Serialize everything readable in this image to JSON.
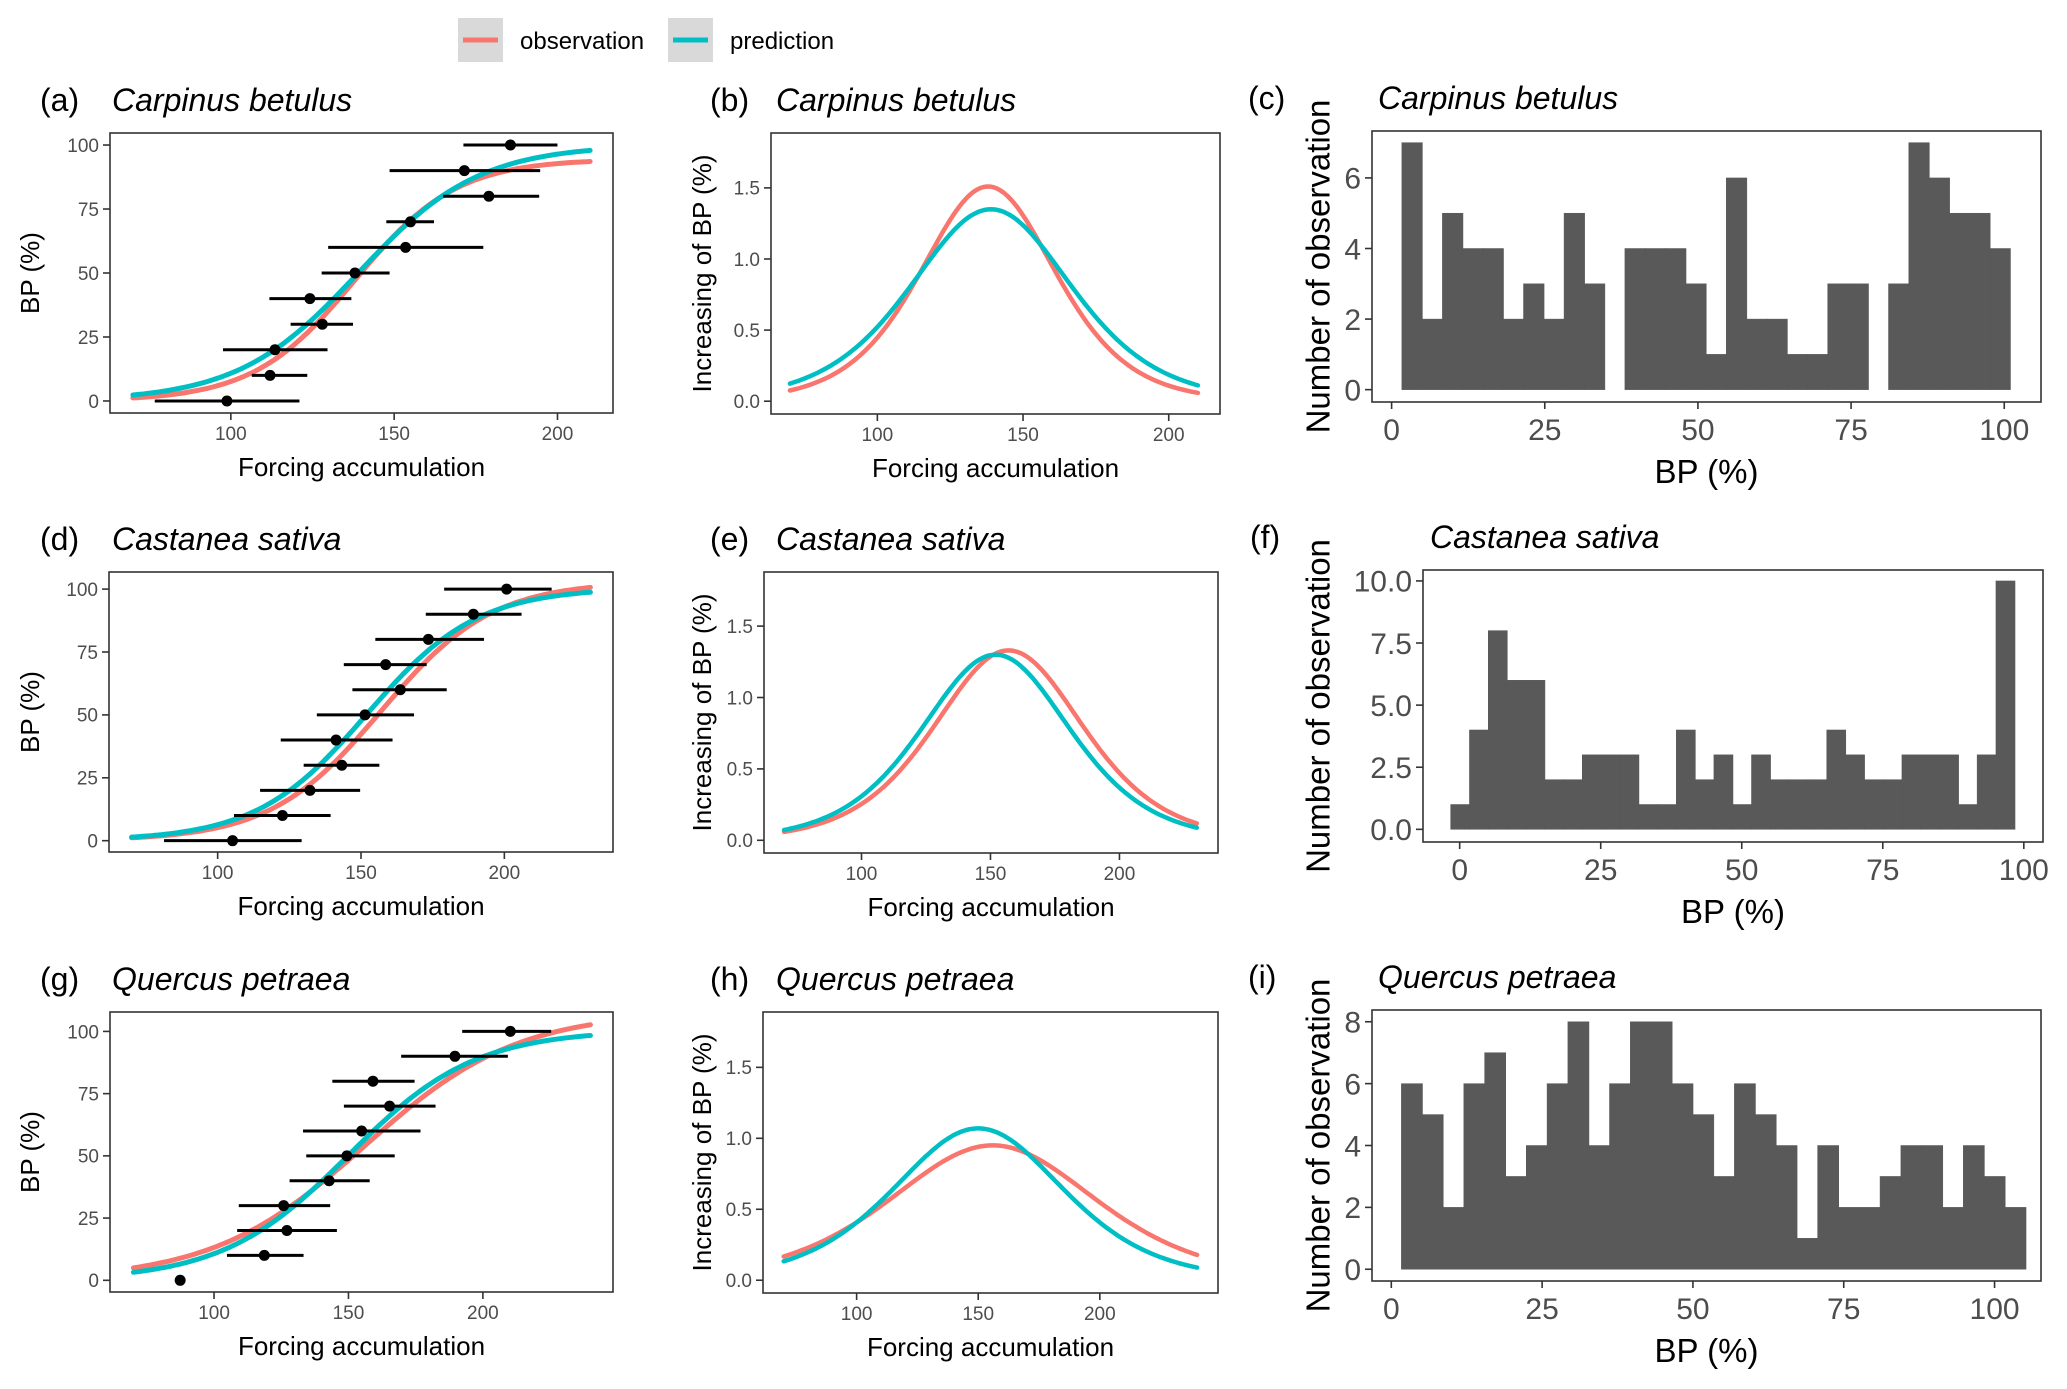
{
  "legend": {
    "items": [
      {
        "label": "observation",
        "color": "#F8766D"
      },
      {
        "label": "prediction",
        "color": "#00BFC4"
      }
    ],
    "key_background": "#d9d9d9",
    "placement": "top-center"
  },
  "colors": {
    "observation": "#F8766D",
    "prediction": "#00BFC4",
    "histogram_fill": "#595959",
    "points": "#000000"
  },
  "chart_data": [
    {
      "id": "a",
      "tag": "(a)",
      "title": "Carpinus betulus",
      "type": "scatter",
      "xlabel": "Forcing accumulation",
      "ylabel": "BP (%)",
      "xlim": [
        63,
        217
      ],
      "ylim": [
        -4.7,
        104.7
      ],
      "xticks": [
        100,
        150,
        200
      ],
      "yticks": [
        0,
        25,
        50,
        75,
        100
      ],
      "ytick_labels": [
        "0",
        "25",
        "50",
        "75",
        "100"
      ],
      "points": [
        {
          "y": 100,
          "x": 185.6,
          "xmin": 171.2,
          "xmax": 200.0
        },
        {
          "y": 90,
          "x": 171.5,
          "xmin": 148.6,
          "xmax": 194.7
        },
        {
          "y": 80,
          "x": 179.0,
          "xmin": 165.0,
          "xmax": 194.4
        },
        {
          "y": 70,
          "x": 155.0,
          "xmin": 147.6,
          "xmax": 162.2
        },
        {
          "y": 60,
          "x": 153.5,
          "xmin": 129.8,
          "xmax": 177.3
        },
        {
          "y": 50,
          "x": 138.0,
          "xmin": 127.8,
          "xmax": 148.6
        },
        {
          "y": 40,
          "x": 124.2,
          "xmin": 111.8,
          "xmax": 136.9
        },
        {
          "y": 30,
          "x": 128.0,
          "xmin": 118.3,
          "xmax": 137.4
        },
        {
          "y": 20,
          "x": 113.5,
          "xmin": 97.6,
          "xmax": 129.6
        },
        {
          "y": 10,
          "x": 112.0,
          "xmin": 106.4,
          "xmax": 123.4
        },
        {
          "y": 0,
          "x": 98.8,
          "xmin": 76.7,
          "xmax": 121.0
        }
      ],
      "series": [
        {
          "name": "observation",
          "kind": "logistic",
          "asymptote": 94.5,
          "midpoint": 138,
          "scale": 15.6,
          "x_range": [
            70,
            210
          ]
        },
        {
          "name": "prediction",
          "kind": "logistic",
          "asymptote": 100,
          "midpoint": 139,
          "scale": 18.5,
          "x_range": [
            70,
            210
          ]
        }
      ]
    },
    {
      "id": "b",
      "tag": "(b)",
      "title": "Carpinus betulus",
      "type": "line",
      "xlabel": "Forcing accumulation",
      "ylabel": "Increasing of BP (%)",
      "xlim": [
        63.5,
        217.6
      ],
      "ylim": [
        -0.09,
        1.886
      ],
      "xticks": [
        100,
        150,
        200
      ],
      "yticks": [
        0,
        0.5,
        1.0,
        1.5
      ],
      "ytick_labels": [
        "0.0",
        "0.5",
        "1.0",
        "1.5"
      ],
      "series": [
        {
          "name": "observation",
          "kind": "logistic_derivative",
          "peak": 1.51,
          "midpoint": 138,
          "scale": 15.6,
          "x_range": [
            70,
            210
          ]
        },
        {
          "name": "prediction",
          "kind": "logistic_derivative",
          "peak": 1.35,
          "midpoint": 139,
          "scale": 18.5,
          "x_range": [
            70,
            210
          ]
        }
      ]
    },
    {
      "id": "c",
      "tag": "(c)",
      "title": "Carpinus betulus",
      "type": "bar",
      "xlabel": "BP (%)",
      "ylabel": "Number of observation",
      "xlim": [
        -3.2,
        106
      ],
      "ylim": [
        -0.35,
        7.33
      ],
      "xticks": [
        0,
        25,
        50,
        75,
        100
      ],
      "yticks": [
        0,
        2,
        4,
        6
      ],
      "ytick_labels": [
        "0",
        "2",
        "4",
        "6"
      ],
      "bin_start": 1.67,
      "bin_width": 3.31,
      "counts": [
        7,
        2,
        5,
        4,
        4,
        2,
        3,
        2,
        5,
        3,
        0,
        4,
        4,
        4,
        3,
        1,
        6,
        2,
        2,
        1,
        1,
        3,
        3,
        0,
        3,
        7,
        6,
        5,
        5,
        4
      ]
    },
    {
      "id": "d",
      "tag": "(d)",
      "title": "Castanea sativa",
      "type": "scatter",
      "xlabel": "Forcing accumulation",
      "ylabel": "BP (%)",
      "xlim": [
        62.1,
        237.9
      ],
      "ylim": [
        -4.5,
        106.8
      ],
      "xticks": [
        100,
        150,
        200
      ],
      "yticks": [
        0,
        25,
        50,
        75,
        100
      ],
      "ytick_labels": [
        "0",
        "25",
        "50",
        "75",
        "100"
      ],
      "points": [
        {
          "y": 100,
          "x": 200.8,
          "xmin": 179.0,
          "xmax": 216.5
        },
        {
          "y": 90,
          "x": 189.2,
          "xmin": 172.6,
          "xmax": 206.0
        },
        {
          "y": 80,
          "x": 173.5,
          "xmin": 155.0,
          "xmax": 192.9
        },
        {
          "y": 70,
          "x": 158.6,
          "xmin": 144.0,
          "xmax": 172.9
        },
        {
          "y": 60,
          "x": 163.7,
          "xmin": 147.0,
          "xmax": 179.9
        },
        {
          "y": 50,
          "x": 151.4,
          "xmin": 134.6,
          "xmax": 168.5
        },
        {
          "y": 40,
          "x": 141.3,
          "xmin": 122.0,
          "xmax": 161.0
        },
        {
          "y": 30,
          "x": 143.3,
          "xmin": 130.0,
          "xmax": 156.4
        },
        {
          "y": 20,
          "x": 132.2,
          "xmin": 114.8,
          "xmax": 149.7
        },
        {
          "y": 10,
          "x": 122.6,
          "xmin": 105.7,
          "xmax": 139.4
        },
        {
          "y": 0,
          "x": 105.2,
          "xmin": 81.3,
          "xmax": 129.3
        }
      ],
      "series": [
        {
          "name": "observation",
          "kind": "logistic",
          "asymptote": 103,
          "midpoint": 157,
          "scale": 19.4,
          "x_range": [
            70,
            230
          ]
        },
        {
          "name": "prediction",
          "kind": "logistic",
          "asymptote": 100.5,
          "midpoint": 152,
          "scale": 19.3,
          "x_range": [
            70,
            230
          ]
        }
      ]
    },
    {
      "id": "e",
      "tag": "(e)",
      "title": "Castanea sativa",
      "type": "line",
      "xlabel": "Forcing accumulation",
      "ylabel": "Increasing of BP (%)",
      "xlim": [
        62.2,
        238.2
      ],
      "ylim": [
        -0.089,
        1.879
      ],
      "xticks": [
        100,
        150,
        200
      ],
      "yticks": [
        0,
        0.5,
        1.0,
        1.5
      ],
      "ytick_labels": [
        "0.0",
        "0.5",
        "1.0",
        "1.5"
      ],
      "series": [
        {
          "name": "observation",
          "kind": "logistic_derivative",
          "peak": 1.33,
          "midpoint": 157,
          "scale": 19.4,
          "x_range": [
            70,
            230
          ]
        },
        {
          "name": "prediction",
          "kind": "logistic_derivative",
          "peak": 1.3,
          "midpoint": 152,
          "scale": 19.3,
          "x_range": [
            70,
            230
          ]
        }
      ]
    },
    {
      "id": "f",
      "tag": "(f)",
      "title": "Castanea sativa",
      "type": "bar",
      "xlabel": "BP (%)",
      "ylabel": "Number of observation",
      "xlim": [
        -6.5,
        103.4
      ],
      "ylim": [
        -0.51,
        10.44
      ],
      "xticks": [
        0,
        25,
        50,
        75,
        100
      ],
      "yticks": [
        0,
        2.5,
        5.0,
        7.5,
        10.0
      ],
      "ytick_labels": [
        "0.0",
        "2.5",
        "5.0",
        "7.5",
        "10.0"
      ],
      "bin_start": -1.6,
      "bin_width": 3.333,
      "counts": [
        1,
        4,
        8,
        6,
        6,
        2,
        2,
        3,
        3,
        3,
        1,
        1,
        4,
        2,
        3,
        1,
        3,
        2,
        2,
        2,
        4,
        3,
        2,
        2,
        3,
        3,
        3,
        1,
        3,
        10
      ]
    },
    {
      "id": "g",
      "tag": "(g)",
      "title": "Quercus petraea",
      "type": "scatter",
      "xlabel": "Forcing accumulation",
      "ylabel": "BP (%)",
      "xlim": [
        61.3,
        248.4
      ],
      "ylim": [
        -4.7,
        107.8
      ],
      "xticks": [
        100,
        150,
        200
      ],
      "yticks": [
        0,
        25,
        50,
        75,
        100
      ],
      "ytick_labels": [
        "0",
        "25",
        "50",
        "75",
        "100"
      ],
      "points": [
        {
          "y": 100,
          "x": 210.2,
          "xmin": 192.3,
          "xmax": 225.4
        },
        {
          "y": 90,
          "x": 189.6,
          "xmin": 169.6,
          "xmax": 209.3
        },
        {
          "y": 80,
          "x": 159.1,
          "xmin": 144.0,
          "xmax": 174.6
        },
        {
          "y": 70,
          "x": 165.3,
          "xmin": 148.3,
          "xmax": 182.4
        },
        {
          "y": 60,
          "x": 154.9,
          "xmin": 133.1,
          "xmax": 176.8
        },
        {
          "y": 50,
          "x": 149.4,
          "xmin": 134.3,
          "xmax": 167.2
        },
        {
          "y": 40,
          "x": 142.8,
          "xmin": 128.1,
          "xmax": 157.9
        },
        {
          "y": 30,
          "x": 125.9,
          "xmin": 109.2,
          "xmax": 143.2
        },
        {
          "y": 20,
          "x": 127.1,
          "xmin": 108.6,
          "xmax": 145.7
        },
        {
          "y": 10,
          "x": 118.7,
          "xmin": 104.8,
          "xmax": 133.3
        },
        {
          "y": 0,
          "x": 87.4,
          "xmin": null,
          "xmax": null
        }
      ],
      "series": [
        {
          "name": "observation",
          "kind": "logistic",
          "asymptote": 108,
          "midpoint": 156,
          "scale": 28.4,
          "x_range": [
            70,
            240
          ]
        },
        {
          "name": "prediction",
          "kind": "logistic",
          "asymptote": 100.5,
          "midpoint": 150,
          "scale": 23.5,
          "x_range": [
            70,
            240
          ]
        }
      ]
    },
    {
      "id": "h",
      "tag": "(h)",
      "title": "Quercus petraea",
      "type": "line",
      "xlabel": "Forcing accumulation",
      "ylabel": "Increasing of BP (%)",
      "xlim": [
        61.5,
        248.6
      ],
      "ylim": [
        -0.09,
        1.89
      ],
      "xticks": [
        100,
        150,
        200
      ],
      "yticks": [
        0,
        0.5,
        1.0,
        1.5
      ],
      "ytick_labels": [
        "0.0",
        "0.5",
        "1.0",
        "1.5"
      ],
      "series": [
        {
          "name": "observation",
          "kind": "logistic_derivative",
          "peak": 0.95,
          "midpoint": 156,
          "scale": 28.4,
          "x_range": [
            70,
            240
          ]
        },
        {
          "name": "prediction",
          "kind": "logistic_derivative",
          "peak": 1.07,
          "midpoint": 150,
          "scale": 23.5,
          "x_range": [
            70,
            240
          ]
        }
      ]
    },
    {
      "id": "i",
      "tag": "(i)",
      "title": "Quercus petraea",
      "type": "bar",
      "xlabel": "BP (%)",
      "ylabel": "Number of observation",
      "xlim": [
        -3.2,
        107.7
      ],
      "ylim": [
        -0.38,
        8.38
      ],
      "xticks": [
        0,
        25,
        50,
        75,
        100
      ],
      "yticks": [
        0,
        2,
        4,
        6,
        8
      ],
      "ytick_labels": [
        "0",
        "2",
        "4",
        "6",
        "8"
      ],
      "bin_start": 1.67,
      "bin_width": 3.45,
      "counts": [
        6,
        5,
        2,
        6,
        7,
        3,
        4,
        6,
        8,
        4,
        6,
        8,
        8,
        6,
        5,
        3,
        6,
        5,
        4,
        1,
        4,
        2,
        2,
        3,
        4,
        4,
        2,
        4,
        3,
        2
      ]
    }
  ]
}
